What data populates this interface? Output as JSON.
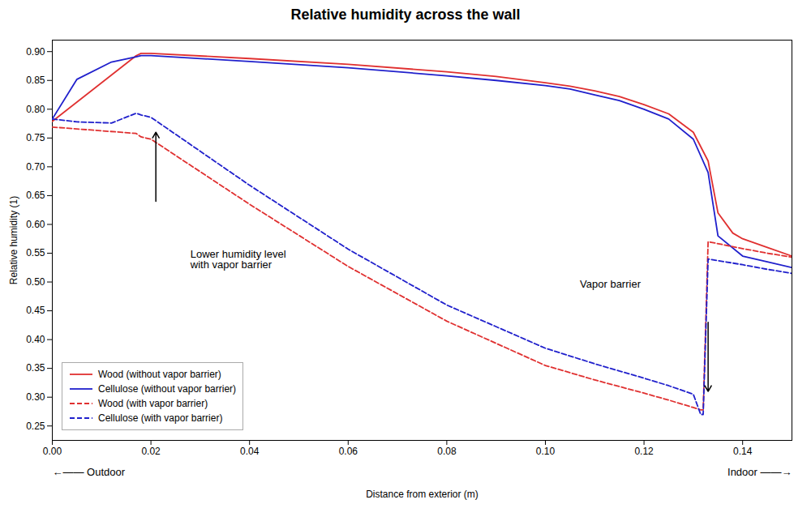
{
  "chart_data": {
    "type": "line",
    "title": "Relative humidity across the wall",
    "x_label": "Distance from exterior (m)",
    "y_label": "Relative humidity (1)",
    "xlim": [
      0,
      0.15
    ],
    "ylim": [
      0.225,
      0.92
    ],
    "xticks": [
      {
        "value": 0,
        "label": "0.00"
      },
      0.02,
      0.04,
      0.06,
      0.08,
      {
        "value": 0.1,
        "label": "0.10"
      },
      0.12,
      0.14
    ],
    "yticks": [
      0.25,
      {
        "value": 0.3,
        "label": "0.30"
      },
      0.35,
      {
        "value": 0.4,
        "label": "0.40"
      },
      0.45,
      {
        "value": 0.5,
        "label": "0.50"
      },
      0.55,
      {
        "value": 0.6,
        "label": "0.60"
      },
      0.65,
      {
        "value": 0.7,
        "label": "0.70"
      },
      0.75,
      {
        "value": 0.8,
        "label": "0.80"
      },
      0.85,
      {
        "value": 0.9,
        "label": "0.90"
      }
    ],
    "grid": false,
    "legend": "lower left",
    "series": [
      {
        "name": "Wood (without vapor barrier)",
        "color": "#e03030",
        "line_style": "solid",
        "x": [
          0.0,
          0.017,
          0.018,
          0.02,
          0.04,
          0.06,
          0.08,
          0.09,
          0.1,
          0.105,
          0.11,
          0.115,
          0.12,
          0.125,
          0.13,
          0.133,
          0.135,
          0.138,
          0.14,
          0.145,
          0.15
        ],
        "values": [
          0.779,
          0.893,
          0.897,
          0.897,
          0.888,
          0.878,
          0.865,
          0.857,
          0.846,
          0.84,
          0.832,
          0.822,
          0.808,
          0.792,
          0.76,
          0.71,
          0.62,
          0.585,
          0.575,
          0.56,
          0.545
        ]
      },
      {
        "name": "Cellulose (without vapor barrier)",
        "color": "#2020cc",
        "line_style": "solid",
        "x": [
          0.0,
          0.005,
          0.012,
          0.017,
          0.018,
          0.02,
          0.04,
          0.06,
          0.08,
          0.09,
          0.1,
          0.105,
          0.11,
          0.115,
          0.12,
          0.125,
          0.13,
          0.133,
          0.135,
          0.14,
          0.145,
          0.15
        ],
        "values": [
          0.783,
          0.852,
          0.882,
          0.891,
          0.893,
          0.893,
          0.883,
          0.872,
          0.858,
          0.85,
          0.841,
          0.835,
          0.825,
          0.815,
          0.8,
          0.783,
          0.748,
          0.69,
          0.58,
          0.545,
          0.535,
          0.525
        ]
      },
      {
        "name": "Wood (with vapor barrier)",
        "color": "#e03030",
        "line_style": "dashed",
        "x": [
          0.0,
          0.017,
          0.018,
          0.02,
          0.04,
          0.06,
          0.08,
          0.1,
          0.11,
          0.12,
          0.125,
          0.13,
          0.1315,
          0.132,
          0.133,
          0.14,
          0.145,
          0.15
        ],
        "values": [
          0.769,
          0.758,
          0.752,
          0.748,
          0.635,
          0.527,
          0.432,
          0.355,
          0.33,
          0.307,
          0.295,
          0.282,
          0.278,
          0.278,
          0.57,
          0.558,
          0.55,
          0.543
        ]
      },
      {
        "name": "Cellulose (with vapor barrier)",
        "color": "#2020cc",
        "line_style": "dashed",
        "x": [
          0.0,
          0.005,
          0.012,
          0.017,
          0.018,
          0.02,
          0.04,
          0.06,
          0.08,
          0.1,
          0.11,
          0.12,
          0.125,
          0.13,
          0.1315,
          0.132,
          0.133,
          0.14,
          0.145,
          0.15
        ],
        "values": [
          0.783,
          0.778,
          0.776,
          0.793,
          0.79,
          0.786,
          0.668,
          0.557,
          0.46,
          0.385,
          0.358,
          0.333,
          0.32,
          0.305,
          0.27,
          0.27,
          0.54,
          0.53,
          0.522,
          0.515
        ]
      }
    ],
    "annotations": [
      {
        "text": "Lower humidity level\nwith vapor barrier",
        "x": 0.028,
        "y": 0.555,
        "arrow_from": [
          0.021,
          0.64
        ],
        "arrow_to": [
          0.021,
          0.76
        ]
      },
      {
        "text": "Vapor barrier",
        "x": 0.107,
        "y": 0.49,
        "arrow_from": [
          0.133,
          0.43
        ],
        "arrow_to": [
          0.133,
          0.31
        ]
      }
    ],
    "side_labels": {
      "left": "←—— Outdoor",
      "right": "Indoor ——→"
    }
  }
}
